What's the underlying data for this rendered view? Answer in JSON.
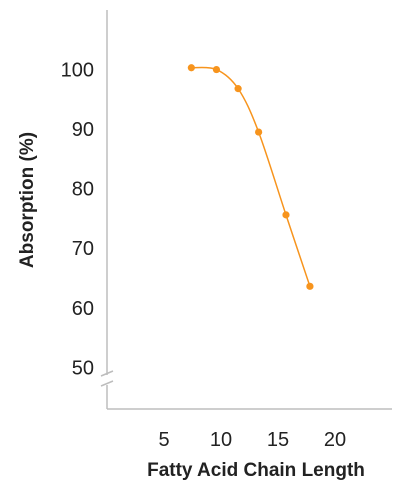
{
  "chart_data": {
    "type": "line",
    "xlabel": "Fatty Acid Chain Length",
    "ylabel": "Absorption (%)",
    "xlim": [
      0,
      25
    ],
    "ylim": [
      43,
      110
    ],
    "x_ticks": [
      5,
      10,
      15,
      20
    ],
    "y_ticks": [
      50,
      60,
      70,
      80,
      90,
      100
    ],
    "y_axis_break": true,
    "grid": false,
    "series": [
      {
        "color": "#f7941d",
        "points": [
          {
            "x": 7.4,
            "y": 100.3
          },
          {
            "x": 9.6,
            "y": 100.0
          },
          {
            "x": 11.5,
            "y": 96.8
          },
          {
            "x": 13.3,
            "y": 89.5
          },
          {
            "x": 15.7,
            "y": 75.6
          },
          {
            "x": 17.8,
            "y": 63.6
          }
        ]
      }
    ]
  }
}
